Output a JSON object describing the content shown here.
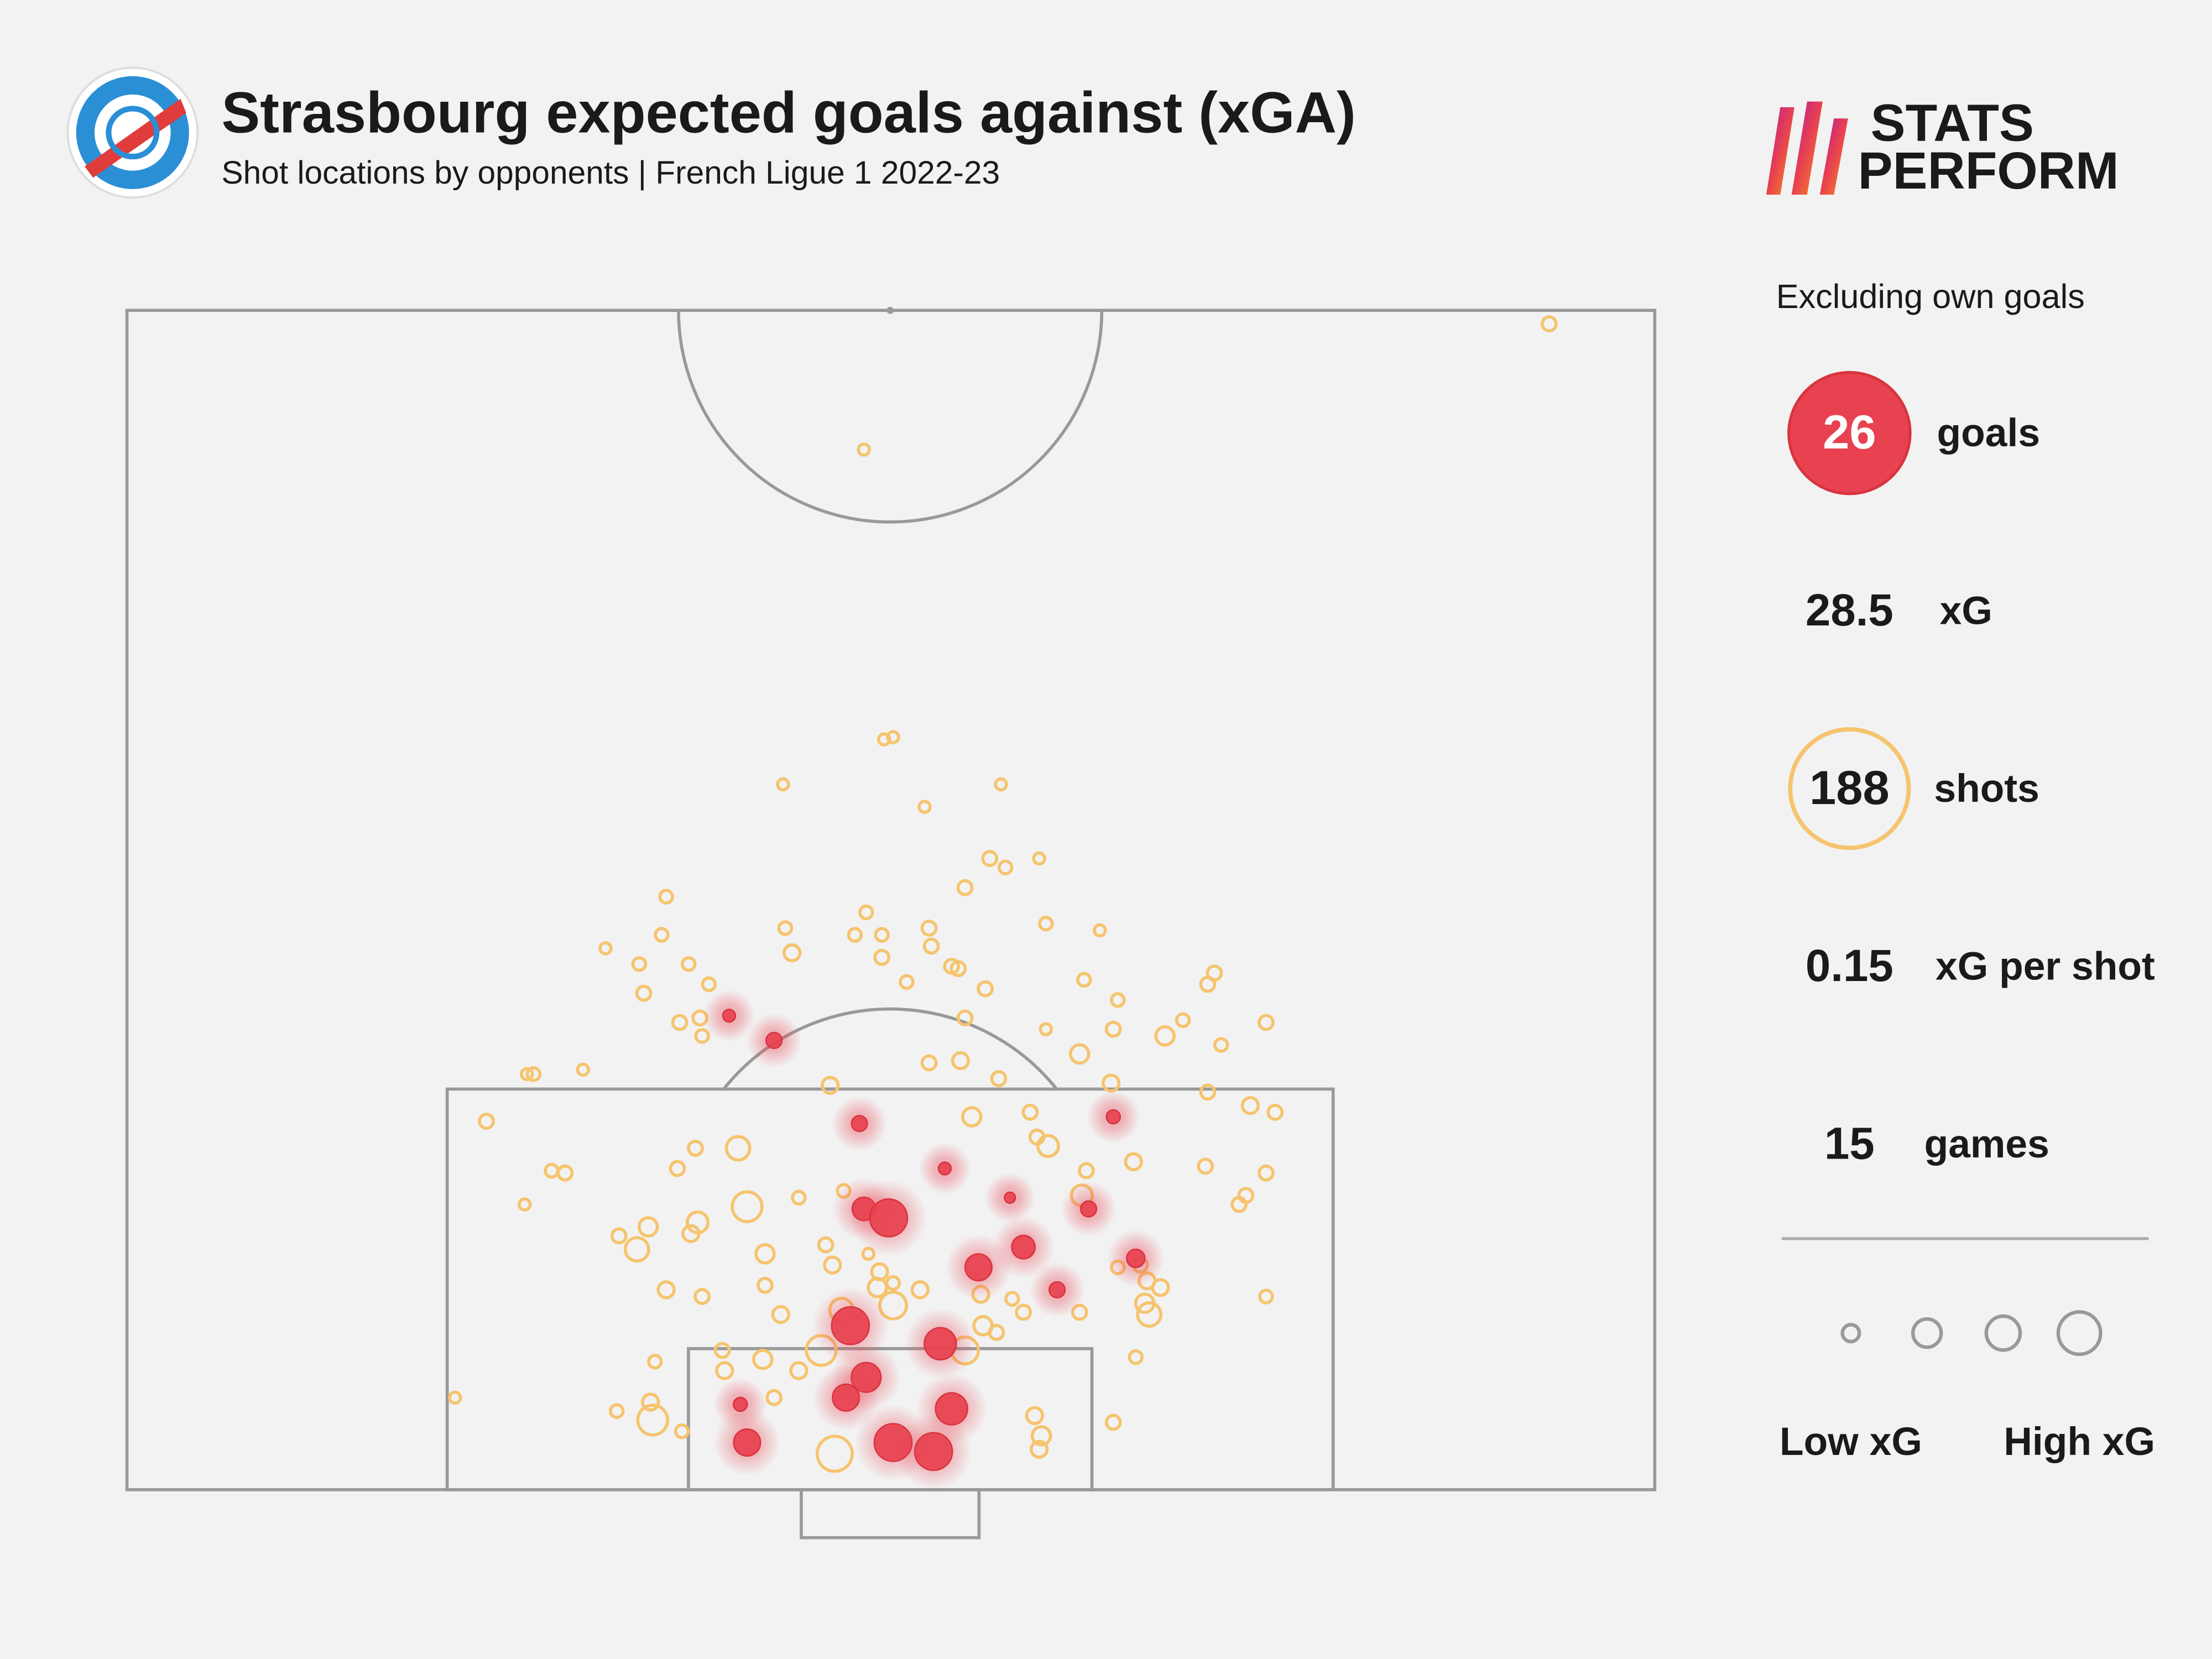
{
  "chart_data": {
    "type": "scatter",
    "title": "Strasbourg expected goals against (xGA)",
    "subtitle": "Shot locations by opponents | French Ligue 1 2022-23",
    "note": "Excluding own goals",
    "xlim": [
      0,
      68
    ],
    "ylim": [
      0,
      52.5
    ],
    "series": [
      {
        "name": "goals",
        "total": 26,
        "color": "#e8414f",
        "filled": true,
        "x": [
          26.8,
          28.8,
          32.6,
          36.4,
          39.3,
          32.8,
          33.9,
          42.8,
          39.9,
          37.9,
          44.9,
          41.4,
          32.2,
          36.2,
          32.9,
          32.0,
          36.7,
          27.3,
          27.6,
          34.1,
          35.9,
          43.9
        ],
        "y": [
          21.1,
          20.0,
          16.3,
          14.3,
          13.0,
          12.5,
          12.1,
          12.5,
          10.8,
          9.9,
          10.3,
          8.9,
          7.3,
          6.5,
          5.0,
          4.1,
          3.6,
          3.8,
          2.1,
          2.1,
          1.7,
          16.6
        ],
        "xg": [
          0.02,
          0.05,
          0.05,
          0.02,
          0.01,
          0.17,
          0.6,
          0.05,
          0.17,
          0.25,
          0.08,
          0.05,
          0.6,
          0.4,
          0.33,
          0.25,
          0.4,
          0.03,
          0.25,
          0.6,
          0.6,
          0.03
        ]
      },
      {
        "name": "shots",
        "total": 188,
        "color": "#f6c46e",
        "filled": false,
        "x": [
          63.3,
          32.8,
          33.7,
          34.1,
          29.2,
          38.9,
          35.5,
          38.4,
          39.1,
          40.6,
          37.3,
          24.0,
          32.9,
          29.3,
          32.4,
          33.6,
          35.7,
          40.9,
          43.3,
          21.3,
          23.8,
          29.6,
          33.6,
          35.8,
          36.7,
          37.0,
          25.0,
          34.7,
          38.2,
          42.6,
          48.4,
          48.1,
          22.8,
          25.9,
          23.0,
          44.1,
          24.6,
          25.5,
          25.6,
          37.3,
          40.9,
          43.9,
          47.0,
          46.2,
          48.7,
          50.7,
          18.1,
          17.8,
          20.3,
          35.7,
          37.1,
          42.4,
          31.3,
          38.8,
          43.8,
          48.1,
          50.0,
          51.1,
          16.0,
          37.6,
          40.2,
          40.5,
          41.0,
          27.2,
          25.3,
          24.5,
          18.9,
          19.5,
          17.7,
          27.6,
          29.9,
          31.9,
          42.7,
          44.8,
          48.0,
          50.7,
          49.8,
          49.5,
          42.5,
          21.9,
          23.2,
          22.7,
          25.1,
          25.4,
          31.1,
          28.4,
          33.0,
          31.4,
          33.5,
          34.1,
          35.3,
          33.4,
          34.1,
          38.0,
          39.4,
          45.1,
          44.1,
          45.4,
          46.0,
          45.3,
          45.5,
          42.4,
          24.0,
          25.6,
          28.4,
          29.1,
          31.8,
          30.9,
          29.9,
          38.1,
          39.9,
          38.7,
          37.3,
          28.3,
          26.5,
          26.6,
          23.5,
          44.9,
          50.7,
          14.6,
          21.8,
          23.3,
          23.4,
          24.7,
          28.8,
          40.4,
          40.7,
          40.6,
          43.9,
          31.5
        ],
        "y": [
          51.9,
          46.3,
          33.4,
          33.5,
          31.4,
          31.4,
          30.4,
          28.1,
          27.7,
          28.1,
          26.8,
          26.4,
          25.7,
          25.0,
          24.7,
          24.7,
          25.0,
          25.2,
          24.9,
          24.1,
          24.7,
          23.9,
          23.7,
          24.2,
          23.3,
          23.2,
          23.4,
          22.6,
          22.3,
          22.7,
          23.0,
          22.5,
          23.4,
          22.5,
          22.1,
          21.8,
          20.8,
          21.0,
          20.2,
          21.0,
          20.5,
          20.5,
          20.9,
          20.2,
          19.8,
          20.8,
          18.5,
          18.5,
          18.7,
          19.0,
          19.1,
          19.4,
          18.0,
          18.3,
          18.1,
          17.7,
          17.1,
          16.8,
          16.4,
          16.6,
          16.8,
          15.7,
          15.3,
          15.2,
          15.2,
          14.3,
          14.2,
          14.1,
          12.7,
          12.6,
          13.0,
          13.3,
          14.2,
          14.6,
          14.4,
          14.1,
          13.1,
          12.7,
          13.1,
          11.3,
          11.7,
          10.7,
          11.4,
          11.9,
          10.9,
          10.5,
          10.5,
          10.0,
          9.7,
          9.2,
          8.9,
          9.0,
          8.2,
          8.7,
          8.5,
          10.0,
          9.9,
          9.3,
          9.0,
          8.3,
          7.8,
          7.9,
          8.9,
          8.6,
          9.1,
          7.8,
          8.0,
          6.2,
          5.3,
          7.3,
          7.9,
          7.0,
          6.2,
          5.8,
          6.2,
          5.3,
          5.7,
          5.9,
          8.6,
          4.1,
          3.5,
          3.9,
          3.1,
          2.6,
          4.1,
          3.3,
          2.4,
          1.8,
          3.0,
          1.6
        ],
        "xg": [
          0.03,
          0.01,
          0.01,
          0.01,
          0.01,
          0.01,
          0.01,
          0.03,
          0.02,
          0.01,
          0.03,
          0.02,
          0.02,
          0.02,
          0.02,
          0.02,
          0.03,
          0.02,
          0.01,
          0.01,
          0.02,
          0.05,
          0.03,
          0.03,
          0.03,
          0.03,
          0.02,
          0.02,
          0.03,
          0.02,
          0.03,
          0.03,
          0.02,
          0.02,
          0.03,
          0.02,
          0.03,
          0.03,
          0.02,
          0.03,
          0.01,
          0.03,
          0.02,
          0.08,
          0.02,
          0.03,
          0.02,
          0.01,
          0.01,
          0.03,
          0.05,
          0.08,
          0.05,
          0.03,
          0.05,
          0.03,
          0.05,
          0.03,
          0.03,
          0.08,
          0.03,
          0.03,
          0.12,
          0.17,
          0.03,
          0.03,
          0.02,
          0.03,
          0.01,
          0.33,
          0.02,
          0.02,
          0.03,
          0.05,
          0.03,
          0.03,
          0.03,
          0.03,
          0.12,
          0.03,
          0.08,
          0.17,
          0.05,
          0.12,
          0.03,
          0.08,
          0.01,
          0.05,
          0.05,
          0.02,
          0.05,
          0.08,
          0.25,
          0.05,
          0.02,
          0.03,
          0.02,
          0.05,
          0.05,
          0.08,
          0.17,
          0.03,
          0.05,
          0.03,
          0.03,
          0.05,
          0.17,
          0.33,
          0.05,
          0.08,
          0.03,
          0.03,
          0.25,
          0.08,
          0.03,
          0.05,
          0.02,
          0.02,
          0.02,
          0.01,
          0.02,
          0.05,
          0.33,
          0.02,
          0.03,
          0.05,
          0.08,
          0.05,
          0.03,
          0.5
        ]
      }
    ],
    "stats": [
      {
        "value": 28.5,
        "label": "xG"
      },
      {
        "value": 0.15,
        "label": "xG per shot"
      },
      {
        "value": 15,
        "label": "games"
      }
    ],
    "size_legend": {
      "low": "Low xG",
      "high": "High xG"
    }
  },
  "brand": [
    "STATS",
    "PERFORM"
  ]
}
